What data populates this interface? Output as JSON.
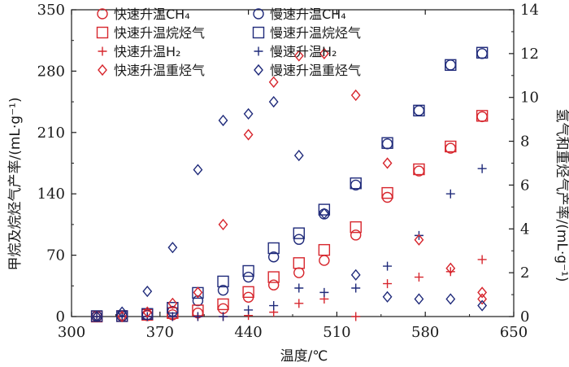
{
  "chart_data": {
    "type": "scatter",
    "xlabel": "温度/℃",
    "ylabel_left": "甲烷及烷烃气产率/(mL·g⁻¹)",
    "ylabel_right": "氢气和重烃气产率/(mL·g⁻¹)",
    "xlim": [
      300,
      650
    ],
    "ylim_left": [
      0,
      350
    ],
    "ylim_right": [
      0,
      14
    ],
    "xticks": [
      300,
      370,
      440,
      510,
      580,
      650
    ],
    "yticks_left": [
      0,
      70,
      140,
      210,
      280,
      350
    ],
    "yticks_right": [
      0,
      2,
      4,
      6,
      8,
      10,
      12,
      14
    ],
    "grid": false,
    "legend_position": "top-left",
    "colors": {
      "fast": "#d7262d",
      "slow": "#1f2a7a"
    },
    "series": [
      {
        "name": "快速升温CH₄",
        "axis": "left",
        "marker": "circle",
        "color": "#d7262d",
        "points": [
          [
            320,
            0
          ],
          [
            340,
            0.5
          ],
          [
            360,
            1
          ],
          [
            380,
            2
          ],
          [
            400,
            4
          ],
          [
            420,
            9
          ],
          [
            440,
            22
          ],
          [
            460,
            36
          ],
          [
            480,
            50
          ],
          [
            500,
            64
          ],
          [
            525,
            93
          ],
          [
            550,
            136
          ],
          [
            575,
            166
          ],
          [
            600,
            192
          ],
          [
            625,
            228
          ]
        ]
      },
      {
        "name": "慢速升温CH₄",
        "axis": "left",
        "marker": "circle",
        "color": "#1f2a7a",
        "points": [
          [
            320,
            0.5
          ],
          [
            340,
            0.5
          ],
          [
            360,
            2
          ],
          [
            380,
            6
          ],
          [
            400,
            18
          ],
          [
            420,
            30
          ],
          [
            440,
            45
          ],
          [
            460,
            68
          ],
          [
            480,
            88
          ],
          [
            500,
            117
          ],
          [
            525,
            150
          ],
          [
            550,
            197
          ],
          [
            575,
            235
          ],
          [
            600,
            287
          ],
          [
            625,
            300
          ]
        ]
      },
      {
        "name": "快速升温烷烃气",
        "axis": "left",
        "marker": "square",
        "color": "#d7262d",
        "points": [
          [
            320,
            0
          ],
          [
            340,
            0.5
          ],
          [
            360,
            2
          ],
          [
            380,
            4
          ],
          [
            400,
            7
          ],
          [
            420,
            14
          ],
          [
            440,
            28
          ],
          [
            460,
            45
          ],
          [
            480,
            61
          ],
          [
            500,
            76
          ],
          [
            525,
            102
          ],
          [
            550,
            141
          ],
          [
            575,
            168
          ],
          [
            600,
            194
          ],
          [
            625,
            229
          ]
        ]
      },
      {
        "name": "慢速升温烷烃气",
        "axis": "left",
        "marker": "square",
        "color": "#1f2a7a",
        "points": [
          [
            320,
            0.5
          ],
          [
            340,
            0.5
          ],
          [
            360,
            3
          ],
          [
            380,
            10
          ],
          [
            400,
            27
          ],
          [
            420,
            40
          ],
          [
            440,
            52
          ],
          [
            460,
            78
          ],
          [
            480,
            95
          ],
          [
            500,
            122
          ],
          [
            525,
            152
          ],
          [
            550,
            198
          ],
          [
            575,
            235
          ],
          [
            600,
            287
          ],
          [
            625,
            301
          ]
        ]
      },
      {
        "name": "快速升温H₂",
        "axis": "right",
        "marker": "plus",
        "color": "#d7262d",
        "points": [
          [
            320,
            0
          ],
          [
            340,
            0
          ],
          [
            360,
            0
          ],
          [
            380,
            0
          ],
          [
            400,
            0
          ],
          [
            420,
            0
          ],
          [
            440,
            0.05
          ],
          [
            460,
            0.2
          ],
          [
            480,
            0.6
          ],
          [
            500,
            0.8
          ],
          [
            525,
            0
          ],
          [
            550,
            1.5
          ],
          [
            575,
            1.8
          ],
          [
            600,
            2.05
          ],
          [
            625,
            2.6
          ]
        ]
      },
      {
        "name": "慢速升温H₂",
        "axis": "right",
        "marker": "plus",
        "color": "#1f2a7a",
        "points": [
          [
            320,
            0
          ],
          [
            340,
            0
          ],
          [
            360,
            0
          ],
          [
            380,
            0
          ],
          [
            400,
            0
          ],
          [
            420,
            0
          ],
          [
            440,
            0.3
          ],
          [
            460,
            0.5
          ],
          [
            480,
            1.3
          ],
          [
            500,
            1.1
          ],
          [
            525,
            1.3
          ],
          [
            550,
            2.3
          ],
          [
            575,
            3.7
          ],
          [
            600,
            5.6
          ],
          [
            625,
            6.75
          ]
        ]
      },
      {
        "name": "快速升温重烃气",
        "axis": "right",
        "marker": "diamond",
        "color": "#d7262d",
        "points": [
          [
            320,
            0
          ],
          [
            340,
            0
          ],
          [
            360,
            0.2
          ],
          [
            380,
            0.6
          ],
          [
            400,
            1.1
          ],
          [
            420,
            4.2
          ],
          [
            440,
            8.3
          ],
          [
            460,
            10.7
          ],
          [
            480,
            11.9
          ],
          [
            500,
            12.0
          ],
          [
            525,
            10.1
          ],
          [
            550,
            7.0
          ],
          [
            575,
            3.5
          ],
          [
            600,
            2.2
          ],
          [
            625,
            1.1
          ],
          [
            625,
            0.8
          ]
        ]
      },
      {
        "name": "慢速升温重烃气",
        "axis": "right",
        "marker": "diamond",
        "color": "#1f2a7a",
        "points": [
          [
            320,
            0
          ],
          [
            340,
            0.2
          ],
          [
            360,
            1.15
          ],
          [
            380,
            3.15
          ],
          [
            400,
            6.7
          ],
          [
            420,
            8.95
          ],
          [
            440,
            9.25
          ],
          [
            460,
            9.8
          ],
          [
            480,
            7.35
          ],
          [
            500,
            4.7
          ],
          [
            525,
            1.9
          ],
          [
            550,
            0.9
          ],
          [
            575,
            0.8
          ],
          [
            600,
            0.8
          ],
          [
            625,
            0.5
          ]
        ]
      }
    ]
  }
}
